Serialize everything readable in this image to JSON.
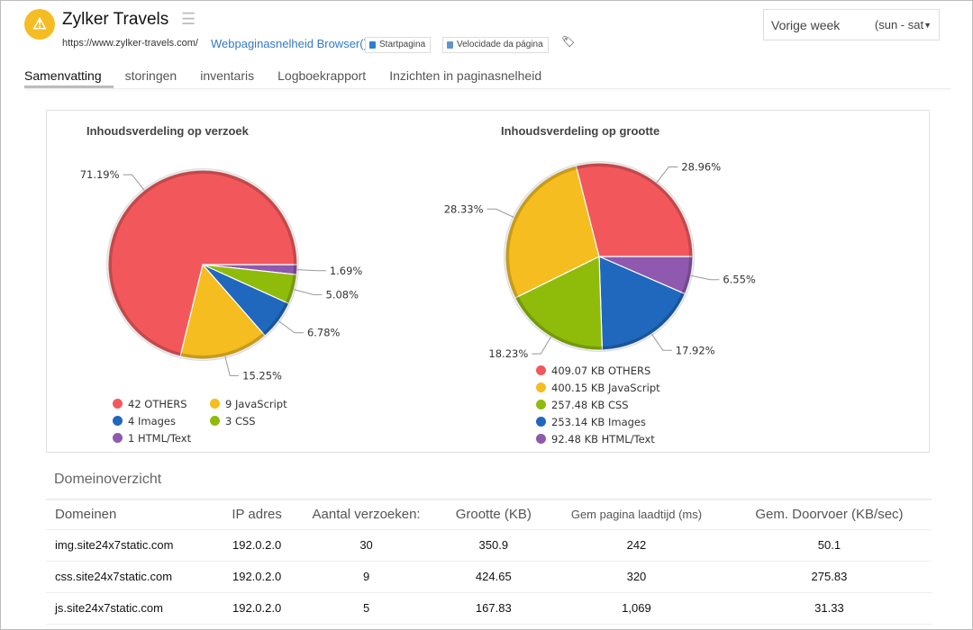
{
  "header": {
    "title": "Zylker Travels",
    "url": "https://www.zylker-travels.com/",
    "browser_link": "Webpaginasnelheid Browser()",
    "chips": [
      "Startpagina",
      "Velocidade da página"
    ],
    "status_icon": "warning-icon",
    "range": {
      "label": "Vorige week",
      "sub": "(sun - sat"
    }
  },
  "tabs": [
    {
      "label": "Samenvatting",
      "active": true
    },
    {
      "label": "storingen"
    },
    {
      "label": "inventaris"
    },
    {
      "label": "Logboekrapport"
    },
    {
      "label": "Inzichten in paginasnelheid"
    }
  ],
  "chart_data": [
    {
      "type": "pie",
      "title": "Inhoudsverdeling op verzoek",
      "slices": [
        {
          "label": "OTHERS",
          "legend": "42 OTHERS",
          "value": 42,
          "percent": "71.19%",
          "color": "#f2585b"
        },
        {
          "label": "JavaScript",
          "legend": "9 JavaScript",
          "value": 9,
          "percent": "15.25%",
          "color": "#f5bd1f"
        },
        {
          "label": "Images",
          "legend": "4 Images",
          "value": 4,
          "percent": "6.78%",
          "color": "#1f68bd"
        },
        {
          "label": "CSS",
          "legend": "3 CSS",
          "value": 3,
          "percent": "5.08%",
          "color": "#8fbc0a"
        },
        {
          "label": "HTML/Text",
          "legend": "1 HTML/Text",
          "value": 1,
          "percent": "1.69%",
          "color": "#8e59ae"
        }
      ]
    },
    {
      "type": "pie",
      "title": "Inhoudsverdeling op grootte",
      "slices": [
        {
          "label": "OTHERS",
          "legend": "409.07 KB OTHERS",
          "value": 409.07,
          "percent": "28.96%",
          "color": "#f2585b"
        },
        {
          "label": "JavaScript",
          "legend": "400.15 KB JavaScript",
          "value": 400.15,
          "percent": "28.33%",
          "color": "#f5bd1f"
        },
        {
          "label": "CSS",
          "legend": "257.48 KB CSS",
          "value": 257.48,
          "percent": "18.23%",
          "color": "#8fbc0a"
        },
        {
          "label": "Images",
          "legend": "253.14 KB Images",
          "value": 253.14,
          "percent": "17.92%",
          "color": "#1f68bd"
        },
        {
          "label": "HTML/Text",
          "legend": "92.48 KB HTML/Text",
          "value": 92.48,
          "percent": "6.55%",
          "color": "#8e59ae"
        }
      ]
    }
  ],
  "domains": {
    "title": "Domeinoverzicht",
    "columns": [
      "Domeinen",
      "IP adres",
      "Aantal verzoeken:",
      "Grootte (KB)",
      "Gem pagina laadtijd (ms)",
      "Gem. Doorvoer (KB/sec)"
    ],
    "rows": [
      [
        "img.site24x7static.com",
        "192.0.2.0",
        "30",
        "350.9",
        "242",
        "50.1"
      ],
      [
        "css.site24x7static.com",
        "192.0.2.0",
        "9",
        "424.65",
        "320",
        "275.83"
      ],
      [
        "js.site24x7static.com",
        "192.0.2.0",
        "5",
        "167.83",
        "1,069",
        "31.33"
      ]
    ]
  }
}
